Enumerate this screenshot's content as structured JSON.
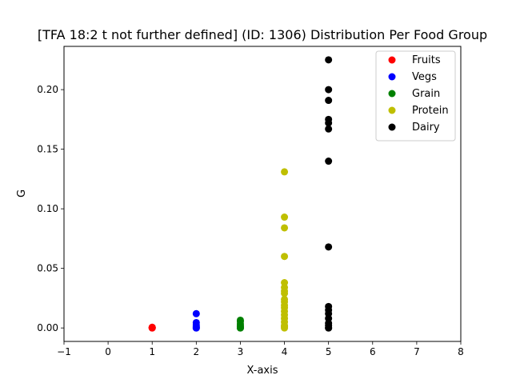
{
  "chart_data": {
    "type": "scatter",
    "title": "[TFA 18:2 t not further defined] (ID: 1306) Distribution Per Food Group",
    "xlabel": "X-axis",
    "ylabel": "G",
    "xlim": [
      -1,
      8
    ],
    "ylim": [
      -0.0113,
      0.2363
    ],
    "xticks": [
      -1,
      0,
      1,
      2,
      3,
      4,
      5,
      6,
      7,
      8
    ],
    "xtick_labels": [
      "−1",
      "0",
      "1",
      "2",
      "3",
      "4",
      "5",
      "6",
      "7",
      "8"
    ],
    "yticks": [
      0.0,
      0.05,
      0.1,
      0.15,
      0.2
    ],
    "ytick_labels": [
      "0.00",
      "0.05",
      "0.10",
      "0.15",
      "0.20"
    ],
    "grid": false,
    "legend_position": "top-right",
    "series": [
      {
        "name": "Fruits",
        "color": "#ff0000",
        "points": [
          [
            1,
            0.0
          ],
          [
            1,
            0.0
          ],
          [
            1,
            0.0003
          ],
          [
            1,
            0.0006
          ]
        ]
      },
      {
        "name": "Vegs",
        "color": "#0000ff",
        "points": [
          [
            2,
            0.012
          ],
          [
            2,
            0.0045
          ],
          [
            2,
            0.0025
          ],
          [
            2,
            0.001
          ],
          [
            2,
            0.0
          ],
          [
            2,
            0.0
          ]
        ]
      },
      {
        "name": "Grain",
        "color": "#008000",
        "points": [
          [
            3,
            0.0065
          ],
          [
            3,
            0.0055
          ],
          [
            3,
            0.0035
          ],
          [
            3,
            0.002
          ],
          [
            3,
            0.001
          ],
          [
            3,
            0.0
          ],
          [
            3,
            0.0
          ]
        ]
      },
      {
        "name": "Protein",
        "color": "#bfbf00",
        "points": [
          [
            4,
            0.131
          ],
          [
            4,
            0.093
          ],
          [
            4,
            0.084
          ],
          [
            4,
            0.06
          ],
          [
            4,
            0.038
          ],
          [
            4,
            0.034
          ],
          [
            4,
            0.031
          ],
          [
            4,
            0.029
          ],
          [
            4,
            0.024
          ],
          [
            4,
            0.022
          ],
          [
            4,
            0.019
          ],
          [
            4,
            0.017
          ],
          [
            4,
            0.014
          ],
          [
            4,
            0.011
          ],
          [
            4,
            0.008
          ],
          [
            4,
            0.005
          ],
          [
            4,
            0.002
          ],
          [
            4,
            0.001
          ],
          [
            4,
            0.0
          ]
        ]
      },
      {
        "name": "Dairy",
        "color": "#000000",
        "points": [
          [
            5,
            0.225
          ],
          [
            5,
            0.2
          ],
          [
            5,
            0.191
          ],
          [
            5,
            0.175
          ],
          [
            5,
            0.172
          ],
          [
            5,
            0.167
          ],
          [
            5,
            0.14
          ],
          [
            5,
            0.068
          ],
          [
            5,
            0.018
          ],
          [
            5,
            0.015
          ],
          [
            5,
            0.012
          ],
          [
            5,
            0.008
          ],
          [
            5,
            0.004
          ],
          [
            5,
            0.002
          ],
          [
            5,
            0.0
          ],
          [
            5,
            0.0
          ]
        ]
      }
    ]
  }
}
